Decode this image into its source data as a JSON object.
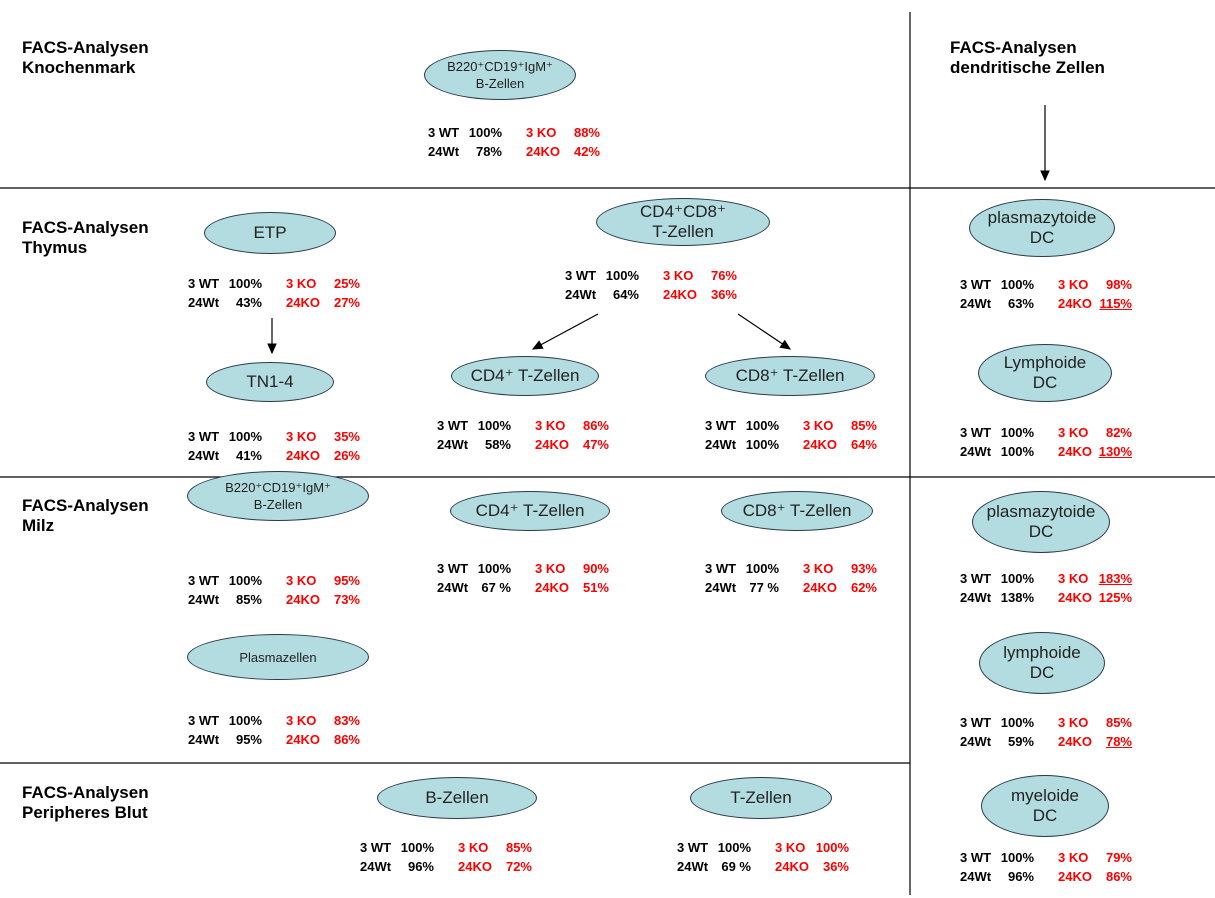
{
  "titles": [
    [
      "FACS-Analysen",
      "Knochenmark"
    ],
    [
      "FACS-Analysen",
      "dendritische Zellen"
    ],
    [
      "FACS-Analysen",
      "Thymus"
    ],
    [
      "FACS-Analysen",
      "Milz"
    ],
    [
      "FACS-Analysen",
      "Peripheres Blut"
    ]
  ],
  "nodes": [
    {
      "label": [
        "B220⁺CD19⁺IgM⁺",
        "B-Zellen"
      ],
      "rows": [
        [
          "3 WT",
          "100%",
          "3 KO",
          "88%"
        ],
        [
          "24Wt",
          "78%",
          "24KO",
          "42%"
        ]
      ]
    },
    {
      "label": [
        "ETP"
      ],
      "rows": [
        [
          "3 WT",
          "100%",
          "3 KO",
          "25%"
        ],
        [
          "24Wt",
          "43%",
          "24KO",
          "27%"
        ]
      ]
    },
    {
      "label": [
        "TN1-4"
      ],
      "rows": [
        [
          "3 WT",
          "100%",
          "3 KO",
          "35%"
        ],
        [
          "24Wt",
          "41%",
          "24KO",
          "26%"
        ]
      ]
    },
    {
      "label": [
        "CD4⁺CD8⁺",
        "T-Zellen"
      ],
      "rows": [
        [
          "3 WT",
          "100%",
          "3 KO",
          "76%"
        ],
        [
          "24Wt",
          "64%",
          "24KO",
          "36%"
        ]
      ]
    },
    {
      "label": [
        "CD4⁺ T-Zellen"
      ],
      "rows": [
        [
          "3 WT",
          "100%",
          "3 KO",
          "86%"
        ],
        [
          "24Wt",
          "58%",
          "24KO",
          "47%"
        ]
      ]
    },
    {
      "label": [
        "CD8⁺ T-Zellen"
      ],
      "rows": [
        [
          "3 WT",
          "100%",
          "3 KO",
          "85%"
        ],
        [
          "24Wt",
          "100%",
          "24KO",
          "64%"
        ]
      ]
    },
    {
      "label": [
        "plasmazytoide",
        "DC"
      ],
      "rows": [
        [
          "3 WT",
          "100%",
          "3 KO",
          "98%"
        ],
        [
          "24Wt",
          "63%",
          "24KO",
          "115%"
        ]
      ],
      "underlined": [
        1
      ]
    },
    {
      "label": [
        "Lymphoide",
        "DC"
      ],
      "rows": [
        [
          "3 WT",
          "100%",
          "3 KO",
          "82%"
        ],
        [
          "24Wt",
          "100%",
          "24KO",
          "130%"
        ]
      ],
      "underlined": [
        1
      ]
    },
    {
      "label": [
        "B220⁺CD19⁺IgM⁺",
        "B-Zellen"
      ],
      "rows": [
        [
          "3 WT",
          "100%",
          "3 KO",
          "95%"
        ],
        [
          "24Wt",
          "85%",
          "24KO",
          "73%"
        ]
      ]
    },
    {
      "label": [
        "Plasmazellen"
      ],
      "rows": [
        [
          "3 WT",
          "100%",
          "3 KO",
          "83%"
        ],
        [
          "24Wt",
          "95%",
          "24KO",
          "86%"
        ]
      ]
    },
    {
      "label": [
        "CD4⁺ T-Zellen"
      ],
      "rows": [
        [
          "3 WT",
          "100%",
          "3 KO",
          "90%"
        ],
        [
          "24Wt",
          "67 %",
          "24KO",
          "51%"
        ]
      ]
    },
    {
      "label": [
        "CD8⁺ T-Zellen"
      ],
      "rows": [
        [
          "3 WT",
          "100%",
          "3 KO",
          "93%"
        ],
        [
          "24Wt",
          "77 %",
          "24KO",
          "62%"
        ]
      ]
    },
    {
      "label": [
        "plasmazytoide",
        "DC"
      ],
      "rows": [
        [
          "3 WT",
          "100%",
          "3 KO",
          "183%"
        ],
        [
          "24Wt",
          "138%",
          "24KO",
          "125%"
        ]
      ],
      "underlined": [
        0
      ]
    },
    {
      "label": [
        "lymphoide",
        "DC"
      ],
      "rows": [
        [
          "3 WT",
          "100%",
          "3 KO",
          "85%"
        ],
        [
          "24Wt",
          "59%",
          "24KO",
          "78%"
        ]
      ],
      "underlined": [
        1
      ]
    },
    {
      "label": [
        "myeloide",
        "DC"
      ],
      "rows": [
        [
          "3 WT",
          "100%",
          "3 KO",
          "79%"
        ],
        [
          "24Wt",
          "96%",
          "24KO",
          "86%"
        ]
      ]
    },
    {
      "label": [
        "B-Zellen"
      ],
      "rows": [
        [
          "3 WT",
          "100%",
          "3 KO",
          "85%"
        ],
        [
          "24Wt",
          "96%",
          "24KO",
          "72%"
        ]
      ]
    },
    {
      "label": [
        "T-Zellen"
      ],
      "rows": [
        [
          "3 WT",
          "100%",
          "3 KO",
          "100%"
        ],
        [
          "24Wt",
          "69 %",
          "24KO",
          "36%"
        ]
      ]
    }
  ]
}
